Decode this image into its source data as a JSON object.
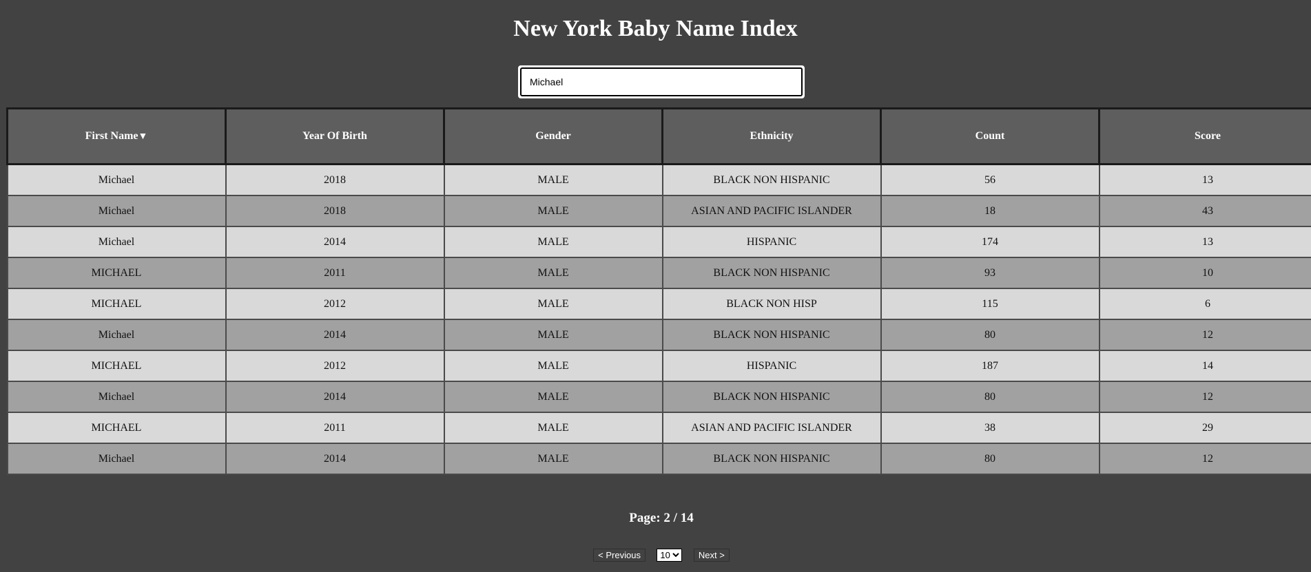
{
  "title": "New York Baby Name Index",
  "search": {
    "value": "Michael",
    "placeholder": ""
  },
  "table": {
    "columns": [
      {
        "label": "First Name",
        "sort_indicator": "▼"
      },
      {
        "label": "Year Of Birth",
        "sort_indicator": ""
      },
      {
        "label": "Gender",
        "sort_indicator": ""
      },
      {
        "label": "Ethnicity",
        "sort_indicator": ""
      },
      {
        "label": "Count",
        "sort_indicator": ""
      },
      {
        "label": "Score",
        "sort_indicator": ""
      }
    ],
    "rows": [
      [
        "Michael",
        "2018",
        "MALE",
        "BLACK NON HISPANIC",
        "56",
        "13"
      ],
      [
        "Michael",
        "2018",
        "MALE",
        "ASIAN AND PACIFIC ISLANDER",
        "18",
        "43"
      ],
      [
        "Michael",
        "2014",
        "MALE",
        "HISPANIC",
        "174",
        "13"
      ],
      [
        "MICHAEL",
        "2011",
        "MALE",
        "BLACK NON HISPANIC",
        "93",
        "10"
      ],
      [
        "MICHAEL",
        "2012",
        "MALE",
        "BLACK NON HISP",
        "115",
        "6"
      ],
      [
        "Michael",
        "2014",
        "MALE",
        "BLACK NON HISPANIC",
        "80",
        "12"
      ],
      [
        "MICHAEL",
        "2012",
        "MALE",
        "HISPANIC",
        "187",
        "14"
      ],
      [
        "Michael",
        "2014",
        "MALE",
        "BLACK NON HISPANIC",
        "80",
        "12"
      ],
      [
        "MICHAEL",
        "2011",
        "MALE",
        "ASIAN AND PACIFIC ISLANDER",
        "38",
        "29"
      ],
      [
        "Michael",
        "2014",
        "MALE",
        "BLACK NON HISPANIC",
        "80",
        "12"
      ]
    ]
  },
  "pagination": {
    "page_text": "Page: 2 / 14",
    "prev_label": "< Previous",
    "next_label": "Next >",
    "page_size": "10",
    "page_size_options": [
      "10"
    ]
  },
  "colors": {
    "background": "#424242",
    "header_bg": "#5e5e5e",
    "row_light": "#d9d9d9",
    "row_dark": "#a1a1a1"
  }
}
